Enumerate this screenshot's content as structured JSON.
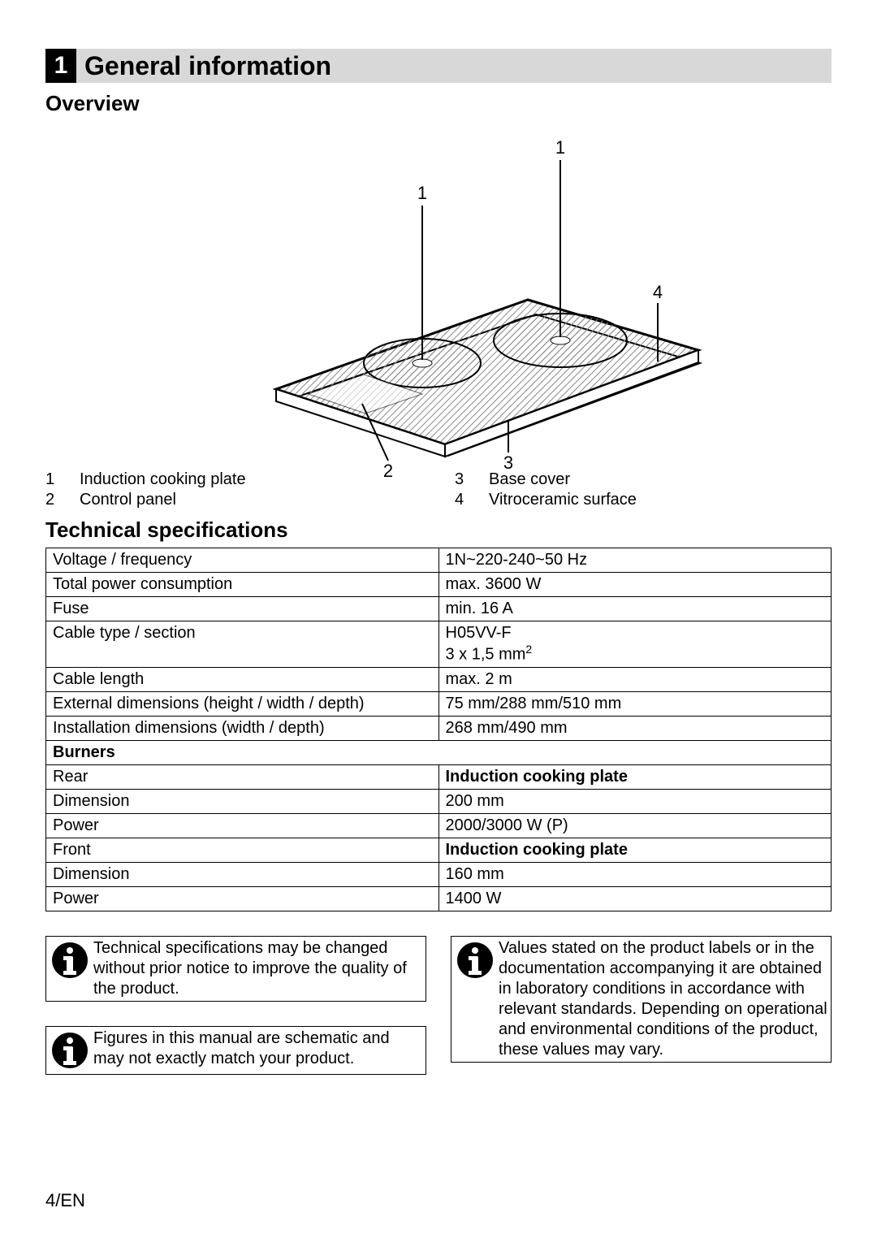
{
  "section": {
    "number": "1",
    "title": "General information"
  },
  "overview": {
    "heading": "Overview",
    "diagram": {
      "callouts": [
        "1",
        "1",
        "2",
        "3",
        "4"
      ],
      "stroke": "#000000",
      "hatch": "#9a9a9a",
      "fill": "#ffffff"
    },
    "legend": {
      "left": [
        {
          "num": "1",
          "label": "Induction cooking plate"
        },
        {
          "num": "2",
          "label": "Control panel"
        }
      ],
      "right": [
        {
          "num": "3",
          "label": "Base cover"
        },
        {
          "num": "4",
          "label": "Vitroceramic surface"
        }
      ]
    }
  },
  "tech_spec": {
    "heading": "Technical specifications",
    "table": {
      "col_widths": [
        "50%",
        "50%"
      ],
      "border_color": "#000000",
      "font_size": 20,
      "rows": [
        {
          "label": "Voltage / frequency",
          "value": "1N~220-240~50 Hz"
        },
        {
          "label": "Total power consumption",
          "value": "max. 3600 W"
        },
        {
          "label": "Fuse",
          "value": "min. 16 A"
        },
        {
          "label": "Cable type / section",
          "value_html": "H05VV-F<br>3 x 1,5 mm<sup>2</sup>"
        },
        {
          "label": "Cable length",
          "value": "max. 2 m"
        },
        {
          "label": "External dimensions (height / width / depth)",
          "value": "75 mm/288 mm/510 mm"
        },
        {
          "label": "Installation dimensions (width / depth)",
          "value": "268 mm/490 mm"
        },
        {
          "label": "Burners",
          "span": true,
          "bold": true
        },
        {
          "label": "Rear",
          "value": "Induction cooking plate",
          "bold_value": true
        },
        {
          "label": "Dimension",
          "value": "200 mm"
        },
        {
          "label": "Power",
          "value": "2000/3000 W (P)"
        },
        {
          "label": "Front",
          "value": "Induction cooking plate",
          "bold_value": true
        },
        {
          "label": "Dimension",
          "value": "160 mm"
        },
        {
          "label": "Power",
          "value": "1400 W"
        }
      ]
    }
  },
  "info_boxes": {
    "box1": "Technical specifications may be changed without prior notice to improve the quality of the product.",
    "box2": "Figures in this manual are schematic and may not exactly match your product.",
    "box3": "Values stated on the product labels or in the documentation accompanying it are obtained in laboratory conditions in accordance with relevant standards. Depending on operational and environmental conditions of the product, these values may vary.",
    "icon": {
      "circle_fill": "#000000",
      "i_fill": "#ffffff"
    }
  },
  "footer": "4/EN"
}
